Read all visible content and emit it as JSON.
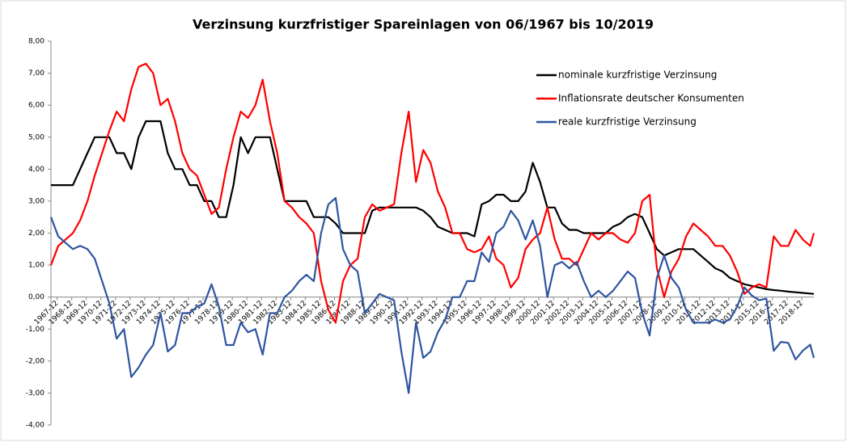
{
  "chart_data": {
    "type": "line",
    "title": "Verzinsung kurzfristiger Spareinlagen von 06/1967 bis 10/2019",
    "x": [
      1967.5,
      1968,
      1968.5,
      1969,
      1969.5,
      1970,
      1970.5,
      1971,
      1971.5,
      1972,
      1972.5,
      1973,
      1973.5,
      1974,
      1974.5,
      1975,
      1975.5,
      1976,
      1976.5,
      1977,
      1977.5,
      1978,
      1978.5,
      1979,
      1979.5,
      1980,
      1980.5,
      1981,
      1981.5,
      1982,
      1982.5,
      1983,
      1983.5,
      1984,
      1984.5,
      1985,
      1985.5,
      1986,
      1986.5,
      1987,
      1987.5,
      1988,
      1988.5,
      1989,
      1989.5,
      1990,
      1990.5,
      1991,
      1991.5,
      1992,
      1992.5,
      1993,
      1993.5,
      1994,
      1994.5,
      1995,
      1995.5,
      1996,
      1996.5,
      1997,
      1997.5,
      1998,
      1998.5,
      1999,
      1999.5,
      2000,
      2000.5,
      2001,
      2001.5,
      2002,
      2002.5,
      2003,
      2003.5,
      2004,
      2004.5,
      2005,
      2005.5,
      2006,
      2006.5,
      2007,
      2007.5,
      2008,
      2008.5,
      2009,
      2009.5,
      2010,
      2010.5,
      2011,
      2011.5,
      2012,
      2012.5,
      2013,
      2013.5,
      2014,
      2014.5,
      2015,
      2015.5,
      2016,
      2016.5,
      2017,
      2017.5,
      2018,
      2018.5,
      2019,
      2019.5,
      2019.75
    ],
    "series": [
      {
        "name": "nominale kurzfristige Verzinsung",
        "color": "#000000",
        "values": [
          3.5,
          3.5,
          3.5,
          3.5,
          4.0,
          4.5,
          5.0,
          5.0,
          5.0,
          4.5,
          4.5,
          4.0,
          5.0,
          5.5,
          5.5,
          5.5,
          4.5,
          4.0,
          4.0,
          3.5,
          3.5,
          3.0,
          3.0,
          2.5,
          2.5,
          3.5,
          5.0,
          4.5,
          5.0,
          5.0,
          5.0,
          4.0,
          3.0,
          3.0,
          3.0,
          3.0,
          2.5,
          2.5,
          2.5,
          2.3,
          2.0,
          2.0,
          2.0,
          2.0,
          2.7,
          2.8,
          2.8,
          2.8,
          2.8,
          2.8,
          2.8,
          2.7,
          2.5,
          2.2,
          2.1,
          2.0,
          2.0,
          2.0,
          1.9,
          2.9,
          3.0,
          3.2,
          3.2,
          3.0,
          3.0,
          3.3,
          4.2,
          3.6,
          2.8,
          2.8,
          2.3,
          2.1,
          2.1,
          2.0,
          2.0,
          2.0,
          2.0,
          2.2,
          2.3,
          2.5,
          2.6,
          2.5,
          2.0,
          1.5,
          1.3,
          1.4,
          1.5,
          1.5,
          1.5,
          1.3,
          1.1,
          0.9,
          0.8,
          0.6,
          0.5,
          0.4,
          0.35,
          0.3,
          0.25,
          0.22,
          0.2,
          0.17,
          0.15,
          0.13,
          0.11,
          0.1
        ]
      },
      {
        "name": "Inflationsrate deutscher Konsumenten",
        "color": "#ff0000",
        "values": [
          1.0,
          1.6,
          1.8,
          2.0,
          2.4,
          3.0,
          3.8,
          4.5,
          5.2,
          5.8,
          5.5,
          6.5,
          7.2,
          7.3,
          7.0,
          6.0,
          6.2,
          5.5,
          4.5,
          4.0,
          3.8,
          3.2,
          2.6,
          2.8,
          4.0,
          5.0,
          5.8,
          5.6,
          6.0,
          6.8,
          5.5,
          4.5,
          3.0,
          2.8,
          2.5,
          2.3,
          2.0,
          0.5,
          -0.4,
          -0.8,
          0.5,
          1.0,
          1.2,
          2.5,
          2.9,
          2.7,
          2.8,
          2.9,
          4.5,
          5.8,
          3.6,
          4.6,
          4.2,
          3.3,
          2.8,
          2.0,
          2.0,
          1.5,
          1.4,
          1.5,
          1.9,
          1.2,
          1.0,
          0.3,
          0.6,
          1.5,
          1.8,
          2.0,
          2.8,
          1.8,
          1.2,
          1.2,
          1.0,
          1.5,
          2.0,
          1.8,
          2.0,
          2.0,
          1.8,
          1.7,
          2.0,
          3.0,
          3.2,
          0.9,
          0.0,
          0.8,
          1.2,
          1.9,
          2.3,
          2.1,
          1.9,
          1.6,
          1.6,
          1.3,
          0.8,
          0.1,
          0.3,
          0.4,
          0.3,
          1.9,
          1.6,
          1.6,
          2.1,
          1.8,
          1.6,
          2.0
        ]
      },
      {
        "name": "reale kurzfristige Verzinsung",
        "color": "#2f55a0",
        "values": [
          2.5,
          1.9,
          1.7,
          1.5,
          1.6,
          1.5,
          1.2,
          0.5,
          -0.2,
          -1.3,
          -1.0,
          -2.5,
          -2.2,
          -1.8,
          -1.5,
          -0.5,
          -1.7,
          -1.5,
          -0.5,
          -0.5,
          -0.3,
          -0.2,
          0.4,
          -0.3,
          -1.5,
          -1.5,
          -0.8,
          -1.1,
          -1.0,
          -1.8,
          -0.5,
          -0.5,
          0.0,
          0.2,
          0.5,
          0.7,
          0.5,
          2.0,
          2.9,
          3.1,
          1.5,
          1.0,
          0.8,
          -0.5,
          -0.2,
          0.1,
          0.0,
          -0.1,
          -1.7,
          -3.0,
          -0.8,
          -1.9,
          -1.7,
          -1.1,
          -0.7,
          0.0,
          0.0,
          0.5,
          0.5,
          1.4,
          1.1,
          2.0,
          2.2,
          2.7,
          2.4,
          1.8,
          2.4,
          1.6,
          0.0,
          1.0,
          1.1,
          0.9,
          1.1,
          0.5,
          0.0,
          0.2,
          0.0,
          0.2,
          0.5,
          0.8,
          0.6,
          -0.5,
          -1.2,
          0.6,
          1.3,
          0.6,
          0.3,
          -0.4,
          -0.8,
          -0.8,
          -0.8,
          -0.7,
          -0.8,
          -0.7,
          -0.3,
          0.3,
          0.05,
          -0.1,
          -0.05,
          -1.68,
          -1.4,
          -1.43,
          -1.95,
          -1.67,
          -1.49,
          -1.9
        ]
      }
    ],
    "xlim": [
      1967.5,
      2019.75
    ],
    "xticks": [
      {
        "value": 1967.92,
        "label": "1967-12"
      },
      {
        "value": 1968.92,
        "label": "1968-12"
      },
      {
        "value": 1969.92,
        "label": "1969-12"
      },
      {
        "value": 1970.92,
        "label": "1970-12"
      },
      {
        "value": 1971.92,
        "label": "1971-12"
      },
      {
        "value": 1972.92,
        "label": "1972-12"
      },
      {
        "value": 1973.92,
        "label": "1973-12"
      },
      {
        "value": 1974.92,
        "label": "1974-12"
      },
      {
        "value": 1975.92,
        "label": "1975-12"
      },
      {
        "value": 1976.92,
        "label": "1976-12"
      },
      {
        "value": 1977.92,
        "label": "1977-12"
      },
      {
        "value": 1978.92,
        "label": "1978-12"
      },
      {
        "value": 1979.92,
        "label": "1979-12"
      },
      {
        "value": 1980.92,
        "label": "1980-12"
      },
      {
        "value": 1981.92,
        "label": "1981-12"
      },
      {
        "value": 1982.92,
        "label": "1982-12"
      },
      {
        "value": 1983.92,
        "label": "1983-12"
      },
      {
        "value": 1984.92,
        "label": "1984-12"
      },
      {
        "value": 1985.92,
        "label": "1985-12"
      },
      {
        "value": 1986.92,
        "label": "1986-12"
      },
      {
        "value": 1987.92,
        "label": "1987-12"
      },
      {
        "value": 1988.92,
        "label": "1988-12"
      },
      {
        "value": 1989.92,
        "label": "1989-12"
      },
      {
        "value": 1990.92,
        "label": "1990-12"
      },
      {
        "value": 1991.92,
        "label": "1991-12"
      },
      {
        "value": 1992.92,
        "label": "1992-12"
      },
      {
        "value": 1993.92,
        "label": "1993-12"
      },
      {
        "value": 1994.92,
        "label": "1994-12"
      },
      {
        "value": 1995.92,
        "label": "1995-12"
      },
      {
        "value": 1996.92,
        "label": "1996-12"
      },
      {
        "value": 1997.92,
        "label": "1997-12"
      },
      {
        "value": 1998.92,
        "label": "1998-12"
      },
      {
        "value": 1999.92,
        "label": "1999-12"
      },
      {
        "value": 2000.92,
        "label": "2000-12"
      },
      {
        "value": 2001.92,
        "label": "2001-12"
      },
      {
        "value": 2002.92,
        "label": "2002-12"
      },
      {
        "value": 2003.92,
        "label": "2003-12"
      },
      {
        "value": 2004.92,
        "label": "2004-12"
      },
      {
        "value": 2005.92,
        "label": "2005-12"
      },
      {
        "value": 2006.92,
        "label": "2006-12"
      },
      {
        "value": 2007.92,
        "label": "2007-12"
      },
      {
        "value": 2008.92,
        "label": "2008-12"
      },
      {
        "value": 2009.92,
        "label": "2009-12"
      },
      {
        "value": 2010.92,
        "label": "2010-12"
      },
      {
        "value": 2011.92,
        "label": "2011-12"
      },
      {
        "value": 2012.92,
        "label": "2012-12"
      },
      {
        "value": 2013.92,
        "label": "2013-12"
      },
      {
        "value": 2014.92,
        "label": "2014-12"
      },
      {
        "value": 2015.92,
        "label": "2015-12"
      },
      {
        "value": 2016.92,
        "label": "2016-12"
      },
      {
        "value": 2017.92,
        "label": "2017-12"
      },
      {
        "value": 2018.92,
        "label": "2018-12"
      }
    ],
    "ylim": [
      -4,
      8
    ],
    "yticks": [
      {
        "value": 8,
        "label": "8,00"
      },
      {
        "value": 7,
        "label": "7,00"
      },
      {
        "value": 6,
        "label": "6,00"
      },
      {
        "value": 5,
        "label": "5,00"
      },
      {
        "value": 4,
        "label": "4,00"
      },
      {
        "value": 3,
        "label": "3,00"
      },
      {
        "value": 2,
        "label": "2,00"
      },
      {
        "value": 1,
        "label": "1,00"
      },
      {
        "value": 0,
        "label": "0,00"
      },
      {
        "value": -1,
        "label": "-1,00"
      },
      {
        "value": -2,
        "label": "-2,00"
      },
      {
        "value": -3,
        "label": "-3,00"
      },
      {
        "value": -4,
        "label": "-4,00"
      }
    ],
    "legend": "upper right",
    "grid": false
  }
}
